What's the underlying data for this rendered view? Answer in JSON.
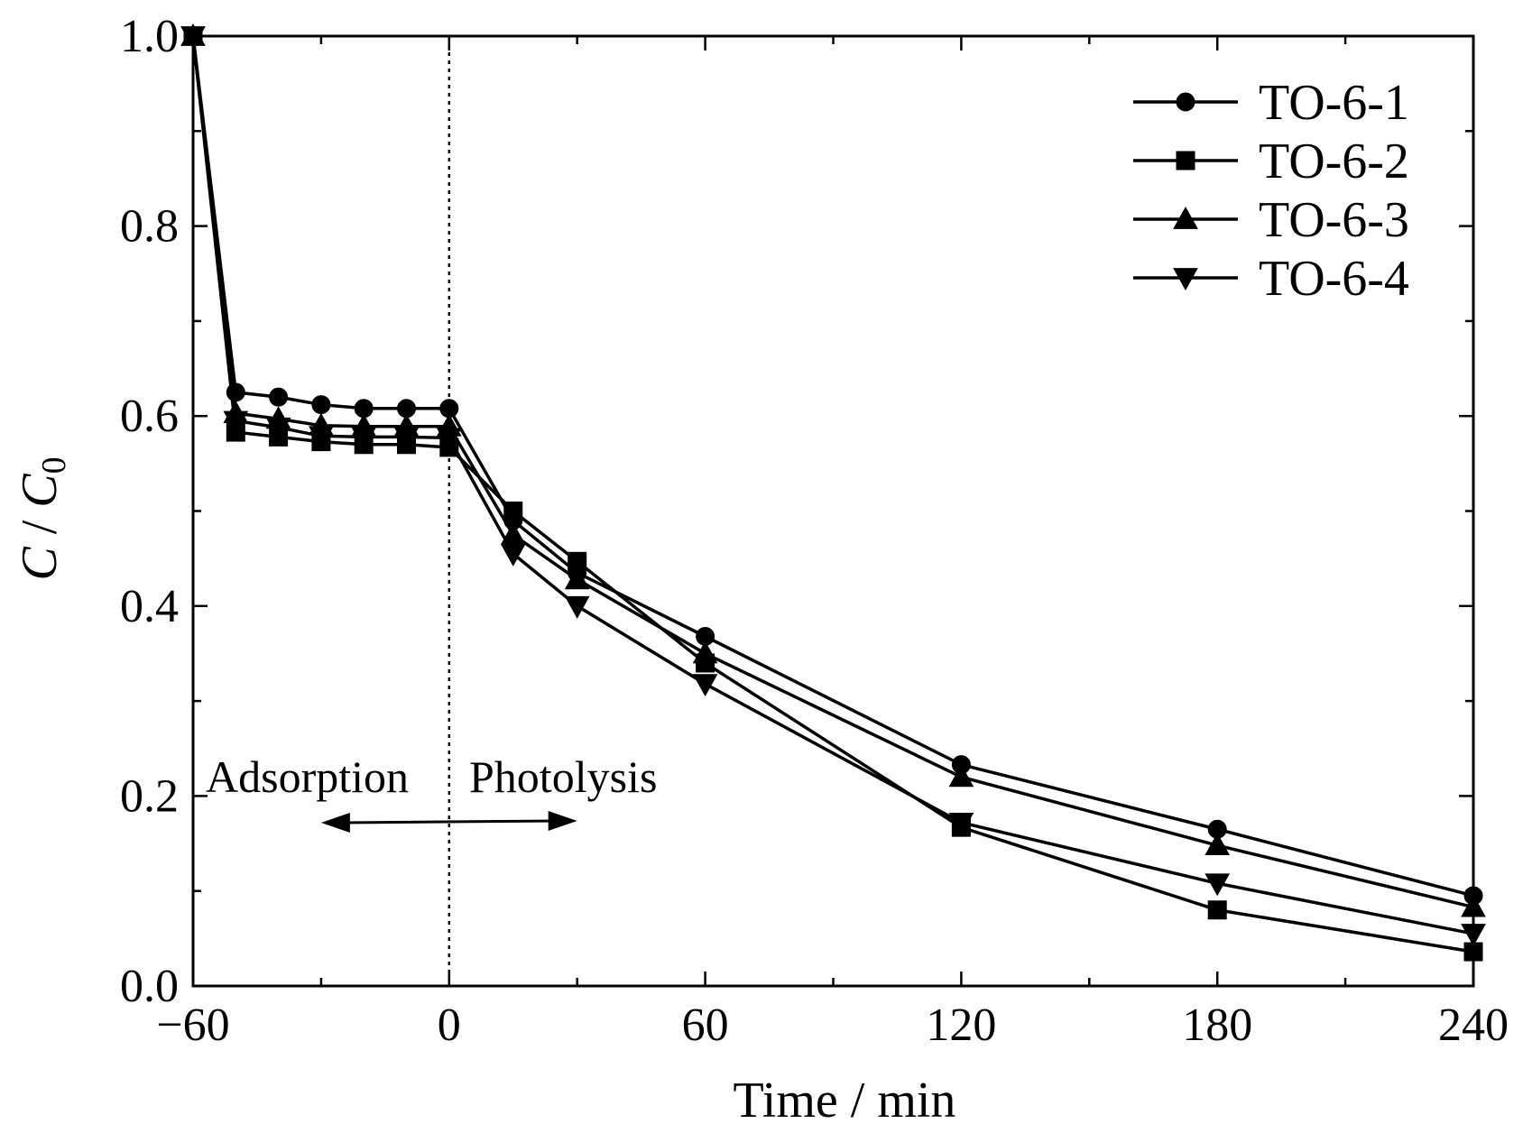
{
  "chart_data": {
    "type": "line",
    "xlabel": "Time / min",
    "ylabel_italic_1": "C",
    "ylabel_sep": " / ",
    "ylabel_italic_2": "C",
    "ylabel_sub": "0",
    "xlim": [
      -60,
      240
    ],
    "ylim": [
      0.0,
      1.0
    ],
    "xticks": [
      -60,
      0,
      60,
      120,
      180,
      240
    ],
    "xtick_labels": [
      "−60",
      "0",
      "60",
      "120",
      "180",
      "240"
    ],
    "yticks": [
      0.0,
      0.2,
      0.4,
      0.6,
      0.8,
      1.0
    ],
    "ytick_labels": [
      "0.0",
      "0.2",
      "0.4",
      "0.6",
      "0.8",
      "1.0"
    ],
    "x": [
      -60,
      -50,
      -40,
      -30,
      -20,
      -10,
      0,
      15,
      30,
      60,
      120,
      180,
      240
    ],
    "series": [
      {
        "name": "TO-6-1",
        "marker": "circle",
        "values": [
          1.0,
          0.625,
          0.62,
          0.612,
          0.608,
          0.608,
          0.608,
          0.49,
          0.435,
          0.368,
          0.233,
          0.165,
          0.095
        ]
      },
      {
        "name": "TO-6-2",
        "marker": "square",
        "values": [
          1.0,
          0.583,
          0.578,
          0.573,
          0.57,
          0.57,
          0.567,
          0.5,
          0.447,
          0.34,
          0.167,
          0.08,
          0.036
        ]
      },
      {
        "name": "TO-6-3",
        "marker": "triangle-up",
        "values": [
          1.0,
          0.603,
          0.597,
          0.59,
          0.589,
          0.589,
          0.589,
          0.475,
          0.428,
          0.35,
          0.22,
          0.148,
          0.083
        ]
      },
      {
        "name": "TO-6-4",
        "marker": "triangle-down",
        "values": [
          1.0,
          0.595,
          0.588,
          0.579,
          0.578,
          0.578,
          0.577,
          0.455,
          0.4,
          0.318,
          0.172,
          0.108,
          0.055
        ]
      }
    ],
    "divider_x": 0,
    "annotations": {
      "left": "Adsorption",
      "right": "Photolysis"
    },
    "legend_position": "top-right",
    "grid": false
  }
}
